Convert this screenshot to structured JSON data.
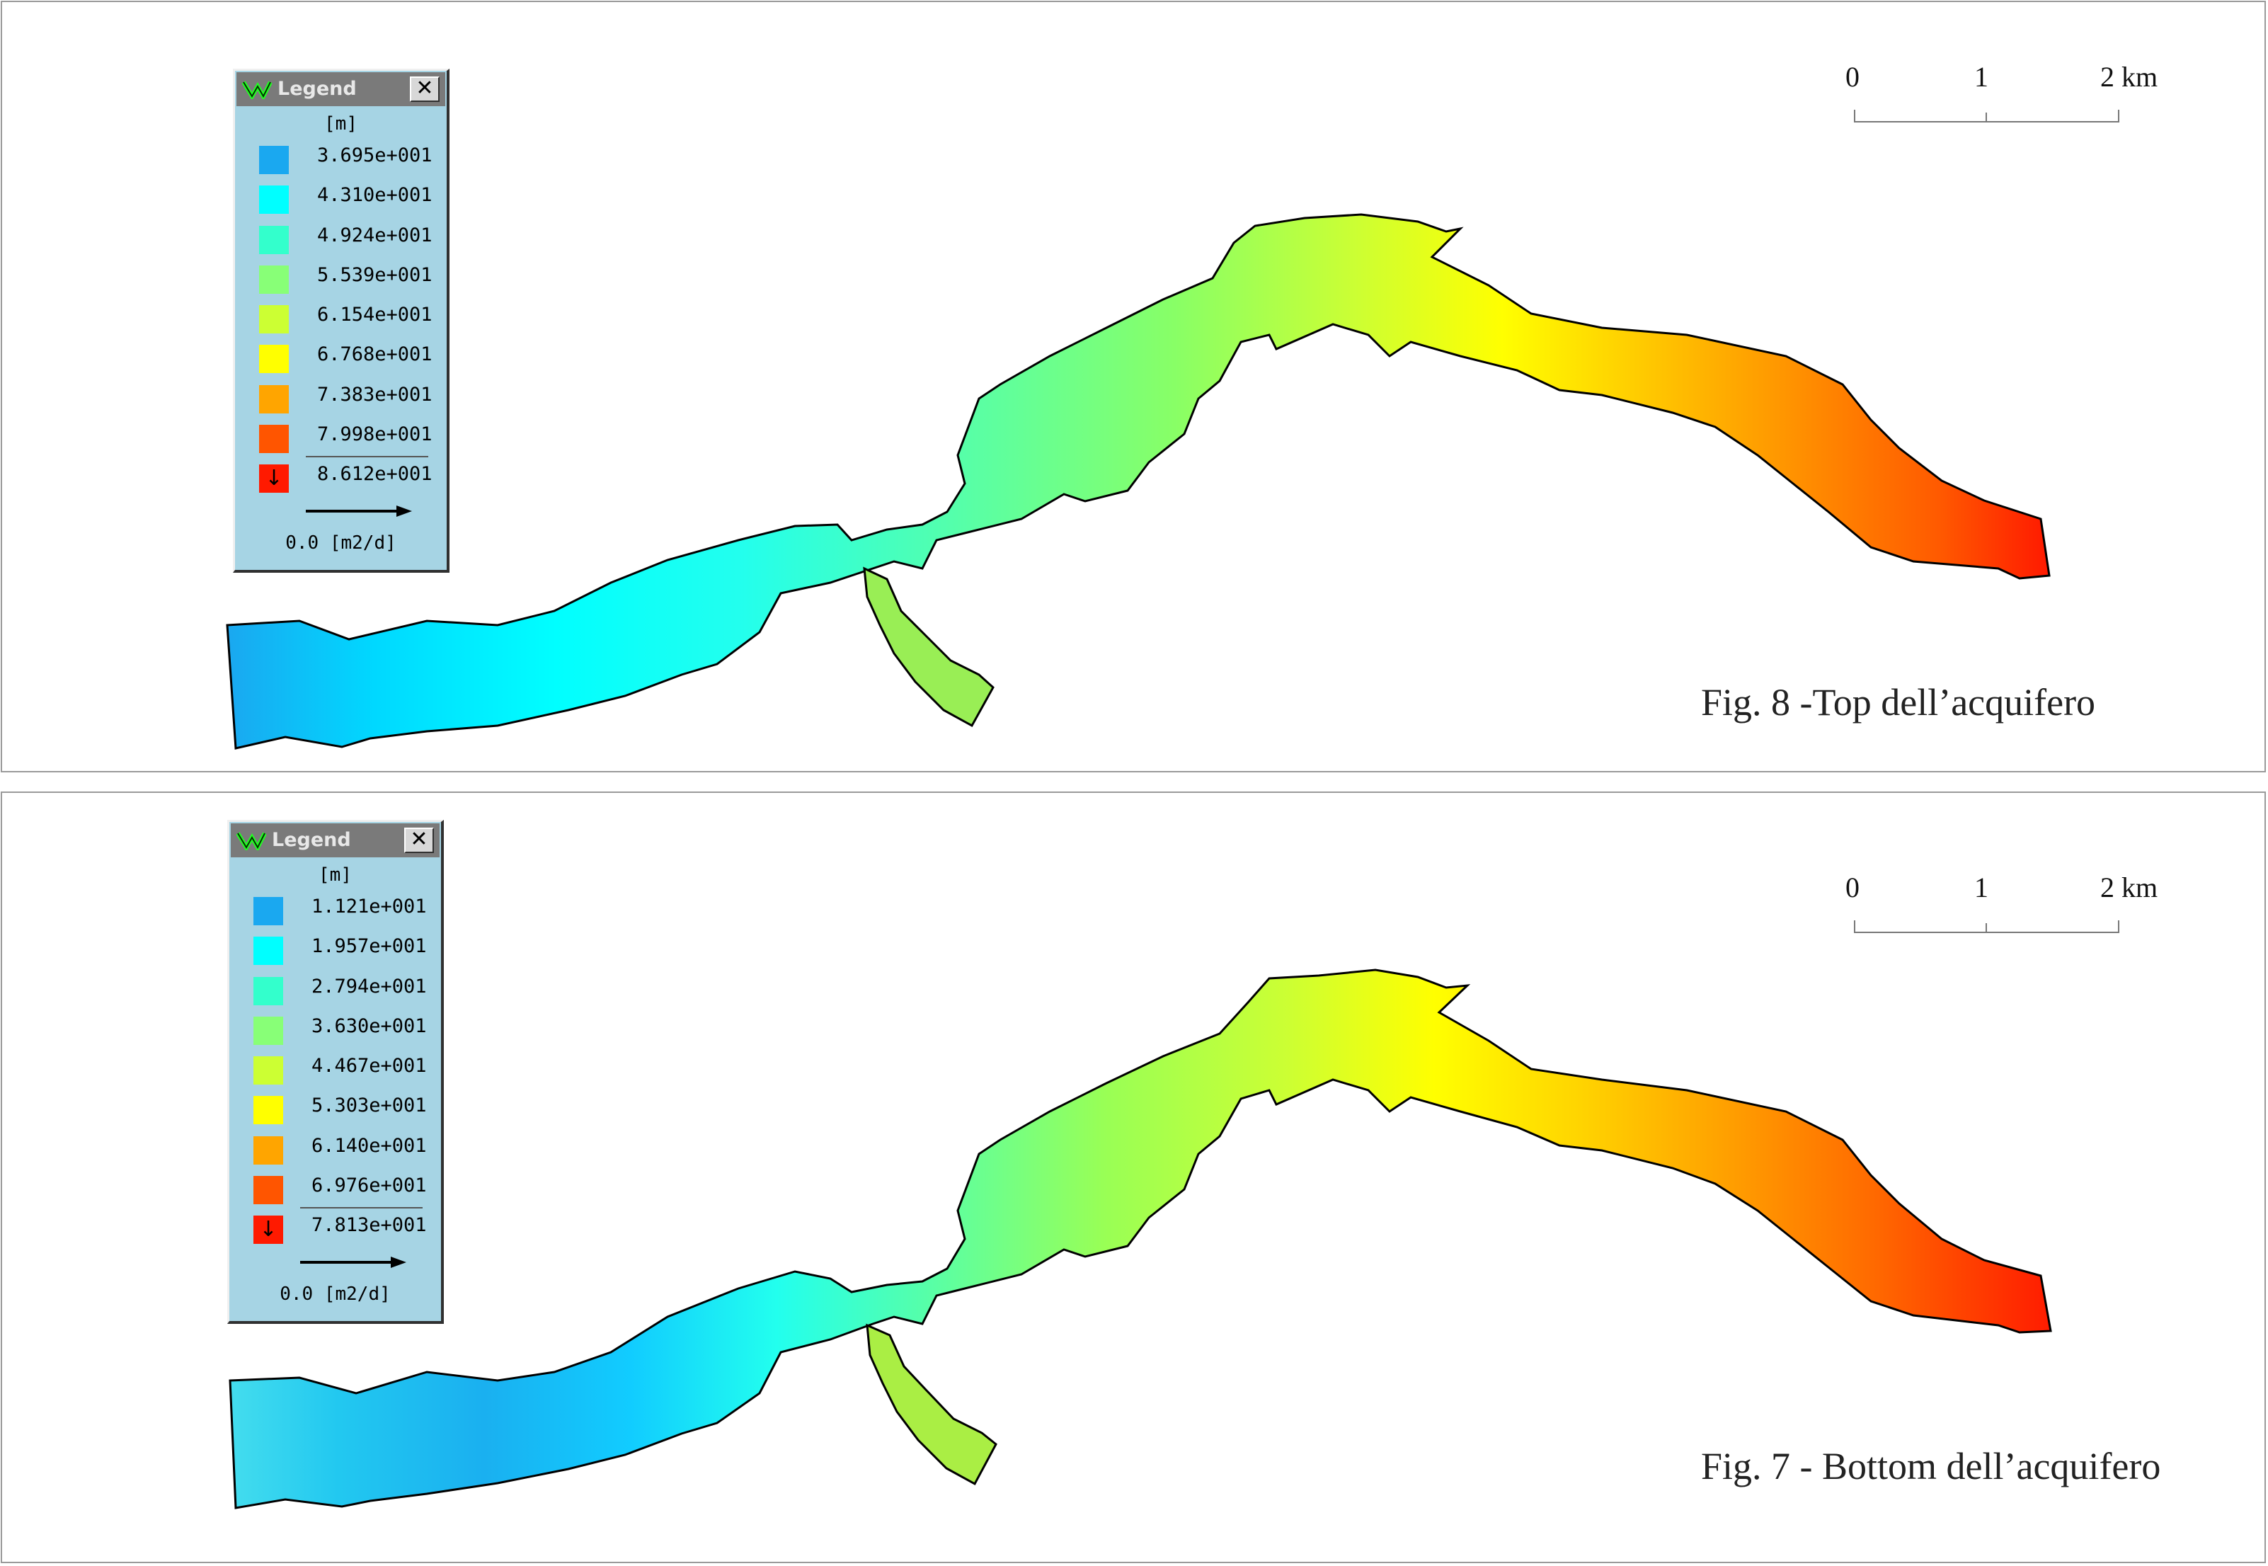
{
  "colors": {
    "c1": "#1aa8f0",
    "c2": "#00ffff",
    "c3": "#33ffcc",
    "c4": "#88ff77",
    "c5": "#ccff33",
    "c6": "#ffff00",
    "c7": "#ffa500",
    "c8": "#ff5500",
    "c9": "#ff1a00"
  },
  "scale_bar": {
    "tick_0": "0",
    "tick_1": "1",
    "tick_2": "2 km"
  },
  "top_figure": {
    "caption": "Fig. 8 -Top dell’acquifero",
    "legend": {
      "title": "Legend",
      "close": "✕",
      "unit": "[m]",
      "values": [
        "3.695e+001",
        "4.310e+001",
        "4.924e+001",
        "5.539e+001",
        "6.154e+001",
        "6.768e+001",
        "7.383e+001",
        "7.998e+001",
        "8.612e+001"
      ],
      "flow_label": "0.0 [m2/d]"
    }
  },
  "bottom_figure": {
    "caption": "Fig. 7 - Bottom dell’acquifero",
    "legend": {
      "title": "Legend",
      "close": "✕",
      "unit": "[m]",
      "values": [
        "1.121e+001",
        "1.957e+001",
        "2.794e+001",
        "3.630e+001",
        "4.467e+001",
        "5.303e+001",
        "6.140e+001",
        "6.976e+001",
        "7.813e+001"
      ],
      "flow_label": "0.0 [m2/d]"
    }
  }
}
